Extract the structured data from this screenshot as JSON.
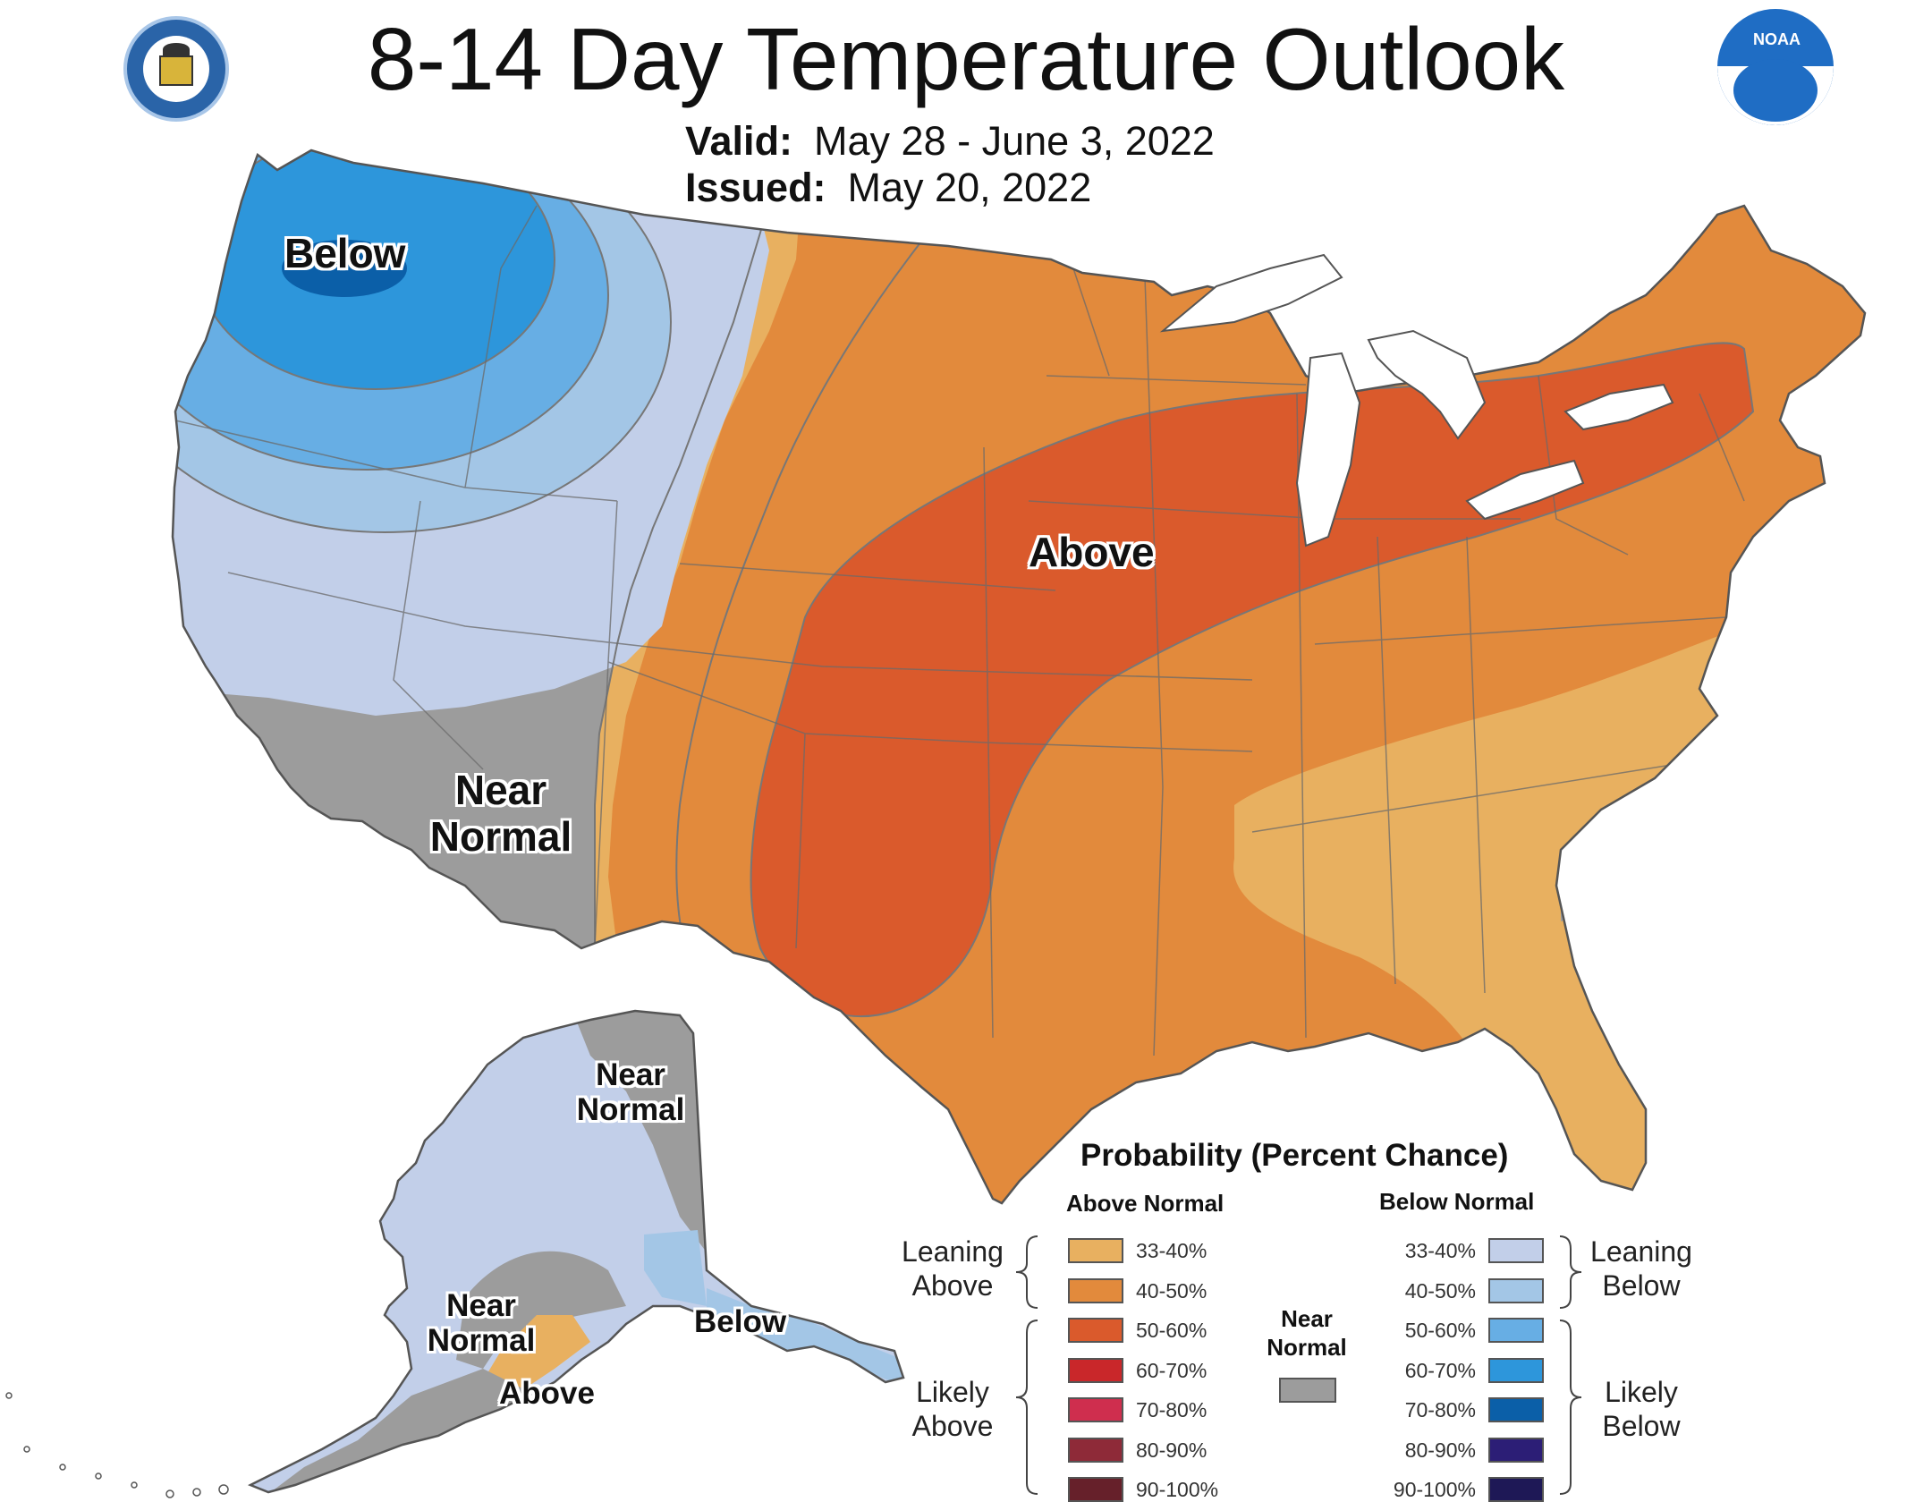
{
  "header": {
    "title": "8-14 Day Temperature Outlook",
    "valid_label": "Valid:",
    "valid_dates": "May 28 - June 3, 2022",
    "issued_label": "Issued:",
    "issued_date": "May 20, 2022"
  },
  "map_labels": {
    "below_nw": "Below",
    "near_normal_sw_1": "Near",
    "near_normal_sw_2": "Normal",
    "above_central": "Above",
    "ak_near_normal_ne_1": "Near",
    "ak_near_normal_ne_2": "Normal",
    "ak_near_normal_sw_1": "Near",
    "ak_near_normal_sw_2": "Normal",
    "ak_above": "Above",
    "ak_below": "Below"
  },
  "legend": {
    "title": "Probability (Percent Chance)",
    "above_header": "Above Normal",
    "below_header": "Below Normal",
    "near_header_1": "Near",
    "near_header_2": "Normal",
    "leaning_above_1": "Leaning",
    "leaning_above_2": "Above",
    "likely_above_1": "Likely",
    "likely_above_2": "Above",
    "leaning_below_1": "Leaning",
    "leaning_below_2": "Below",
    "likely_below_1": "Likely",
    "likely_below_2": "Below",
    "above": [
      {
        "range": "33-40%",
        "color": "#E8B060"
      },
      {
        "range": "40-50%",
        "color": "#E28A3C"
      },
      {
        "range": "50-60%",
        "color": "#DA5A2C"
      },
      {
        "range": "60-70%",
        "color": "#C9272A"
      },
      {
        "range": "70-80%",
        "color": "#CF2E4E"
      },
      {
        "range": "80-90%",
        "color": "#8E2A38"
      },
      {
        "range": "90-100%",
        "color": "#66202A"
      }
    ],
    "below": [
      {
        "range": "33-40%",
        "color": "#C2CFE9"
      },
      {
        "range": "40-50%",
        "color": "#A3C6E6"
      },
      {
        "range": "50-60%",
        "color": "#67AEE4"
      },
      {
        "range": "60-70%",
        "color": "#2D96DB"
      },
      {
        "range": "70-80%",
        "color": "#0B5FA8"
      },
      {
        "range": "80-90%",
        "color": "#2C1E76"
      },
      {
        "range": "90-100%",
        "color": "#1E1856"
      }
    ],
    "near_color": "#9C9C9C"
  },
  "colors": {
    "near_normal": "#9C9C9C",
    "border": "#555555",
    "lake": "#ffffff"
  },
  "icons": [
    "commerce-seal-icon",
    "noaa-logo-icon"
  ]
}
